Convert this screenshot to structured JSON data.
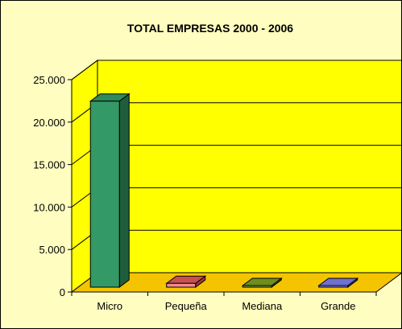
{
  "chart_data": {
    "type": "bar",
    "title": "TOTAL EMPRESAS 2000 - 2006",
    "categories": [
      "Micro",
      "Pequeña",
      "Mediana",
      "Grande"
    ],
    "values": [
      21900,
      450,
      90,
      20
    ],
    "ylim": [
      0,
      25000
    ],
    "yticks": [
      "0",
      "5.000",
      "10.000",
      "15.000",
      "20.000",
      "25.000"
    ],
    "ytick_values": [
      0,
      5000,
      10000,
      15000,
      20000,
      25000
    ],
    "grid": true,
    "legend": "none",
    "colors": {
      "background": "#fffdc0",
      "wall": "#ffff00",
      "floor": "#f5c400",
      "bars": [
        {
          "front": "#339966",
          "top": "#2f8a5c",
          "side": "#1f5e3d"
        },
        {
          "front": "#f48a8a",
          "top": "#c95050",
          "side": "#a03838"
        },
        {
          "front": "#8cb02a",
          "top": "#6e8e1e",
          "side": "#4c6414"
        },
        {
          "front": "#8c8cf0",
          "top": "#7070d0",
          "side": "#5050a8"
        }
      ]
    }
  }
}
